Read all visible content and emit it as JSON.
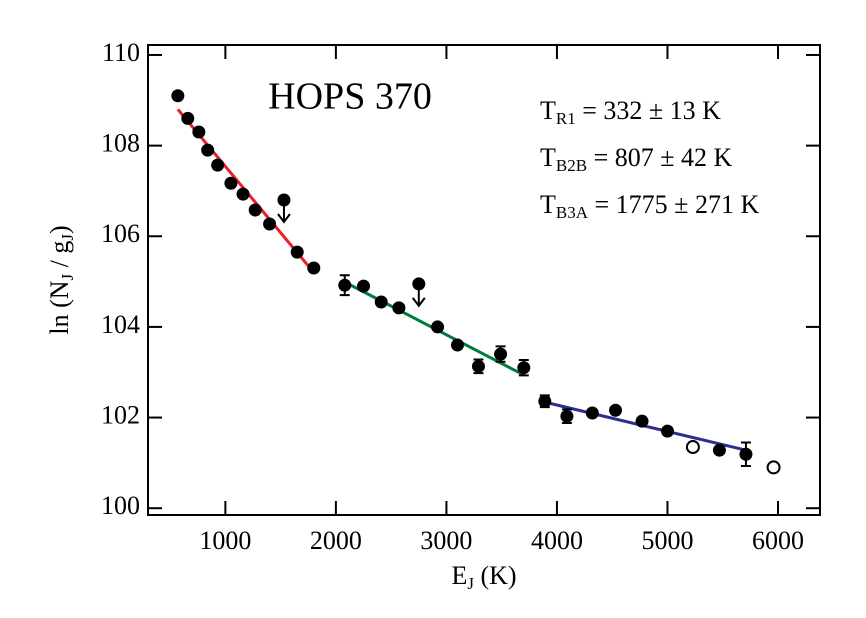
{
  "chart_data": {
    "type": "scatter",
    "title": "HOPS 370",
    "x_label": [
      "E",
      "J",
      " (K)"
    ],
    "y_label": [
      "ln (N",
      "J",
      " / g",
      "J",
      ")"
    ],
    "xlim": [
      300,
      6380
    ],
    "ylim": [
      99.85,
      110.22
    ],
    "xticks": [
      1000,
      2000,
      3000,
      4000,
      5000,
      6000
    ],
    "yticks": [
      100,
      102,
      104,
      106,
      108,
      110
    ],
    "series": [
      {
        "style": "filled",
        "color": "#000000",
        "x": [
          570,
          660,
          760,
          840,
          930,
          1050,
          1160,
          1270,
          1400,
          1650,
          1800,
          2080,
          2250,
          2410,
          2570,
          2920,
          3100,
          3290,
          3490,
          3700,
          3890,
          4090,
          4320,
          4530,
          4770,
          5000,
          5470,
          5710
        ],
        "values": [
          109.1,
          108.6,
          108.3,
          107.9,
          107.57,
          107.17,
          106.93,
          106.58,
          106.27,
          105.65,
          105.3,
          104.92,
          104.9,
          104.55,
          104.42,
          104.0,
          103.6,
          103.13,
          103.4,
          103.1,
          102.36,
          102.03,
          102.1,
          102.16,
          101.92,
          101.7,
          101.28,
          101.19
        ],
        "errors": [
          null,
          null,
          null,
          null,
          null,
          null,
          null,
          null,
          null,
          null,
          null,
          0.22,
          null,
          null,
          null,
          null,
          null,
          0.15,
          0.17,
          0.17,
          0.13,
          0.15,
          null,
          null,
          null,
          null,
          null,
          0.26
        ]
      },
      {
        "style": "upper_limit",
        "color": "#000000",
        "x": [
          1530,
          2750
        ],
        "values": [
          106.8,
          104.95
        ]
      },
      {
        "style": "open",
        "color": "#000000",
        "x": [
          5230,
          5960
        ],
        "values": [
          101.35,
          100.9
        ]
      },
      {
        "style": "line",
        "color": "#e8202a",
        "x": [
          570,
          1800
        ],
        "values": [
          108.8,
          105.2
        ]
      },
      {
        "style": "line",
        "color": "#007a3d",
        "x": [
          2080,
          3700
        ],
        "values": [
          104.99,
          102.94
        ]
      },
      {
        "style": "line",
        "color": "#2b2e8f",
        "x": [
          3890,
          5710
        ],
        "values": [
          102.34,
          101.28
        ]
      }
    ],
    "annotations": [
      {
        "parts": [
          "T",
          "R1",
          " = 332 ± 13 K"
        ],
        "color": "#e8202a"
      },
      {
        "parts": [
          "T",
          "B2B",
          " = 807 ± 42 K"
        ],
        "color": "#007a3d"
      },
      {
        "parts": [
          "T",
          "B3A",
          " = 1775 ± 271 K"
        ],
        "color": "#2b2e8f"
      }
    ]
  }
}
